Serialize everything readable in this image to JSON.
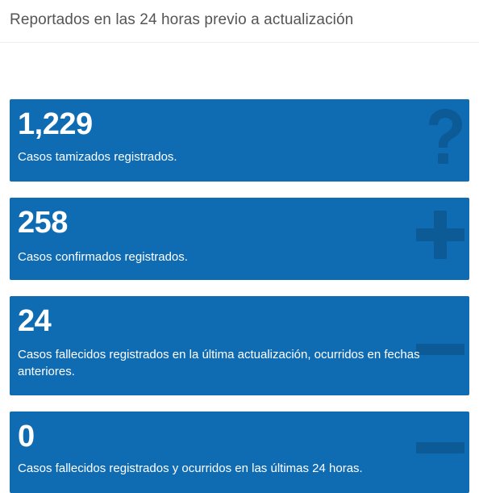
{
  "header": {
    "title": "Reportados en las 24 horas previo a actualización"
  },
  "cards": [
    {
      "value": "1,229",
      "description": "Casos tamizados registrados.",
      "icon": "question-icon"
    },
    {
      "value": "258",
      "description": "Casos confirmados registrados.",
      "icon": "plus-icon"
    },
    {
      "value": "24",
      "description": "Casos fallecidos registrados en la última actualización, ocurridos en fechas anteriores.",
      "icon": "minus-icon"
    },
    {
      "value": "0",
      "description": "Casos fallecidos registrados y ocurridos en las últimas 24 horas.",
      "icon": "minus-icon"
    }
  ],
  "colors": {
    "card_background": "#0f6cb3",
    "icon_color": "#0c5a96",
    "header_text": "#555555"
  }
}
